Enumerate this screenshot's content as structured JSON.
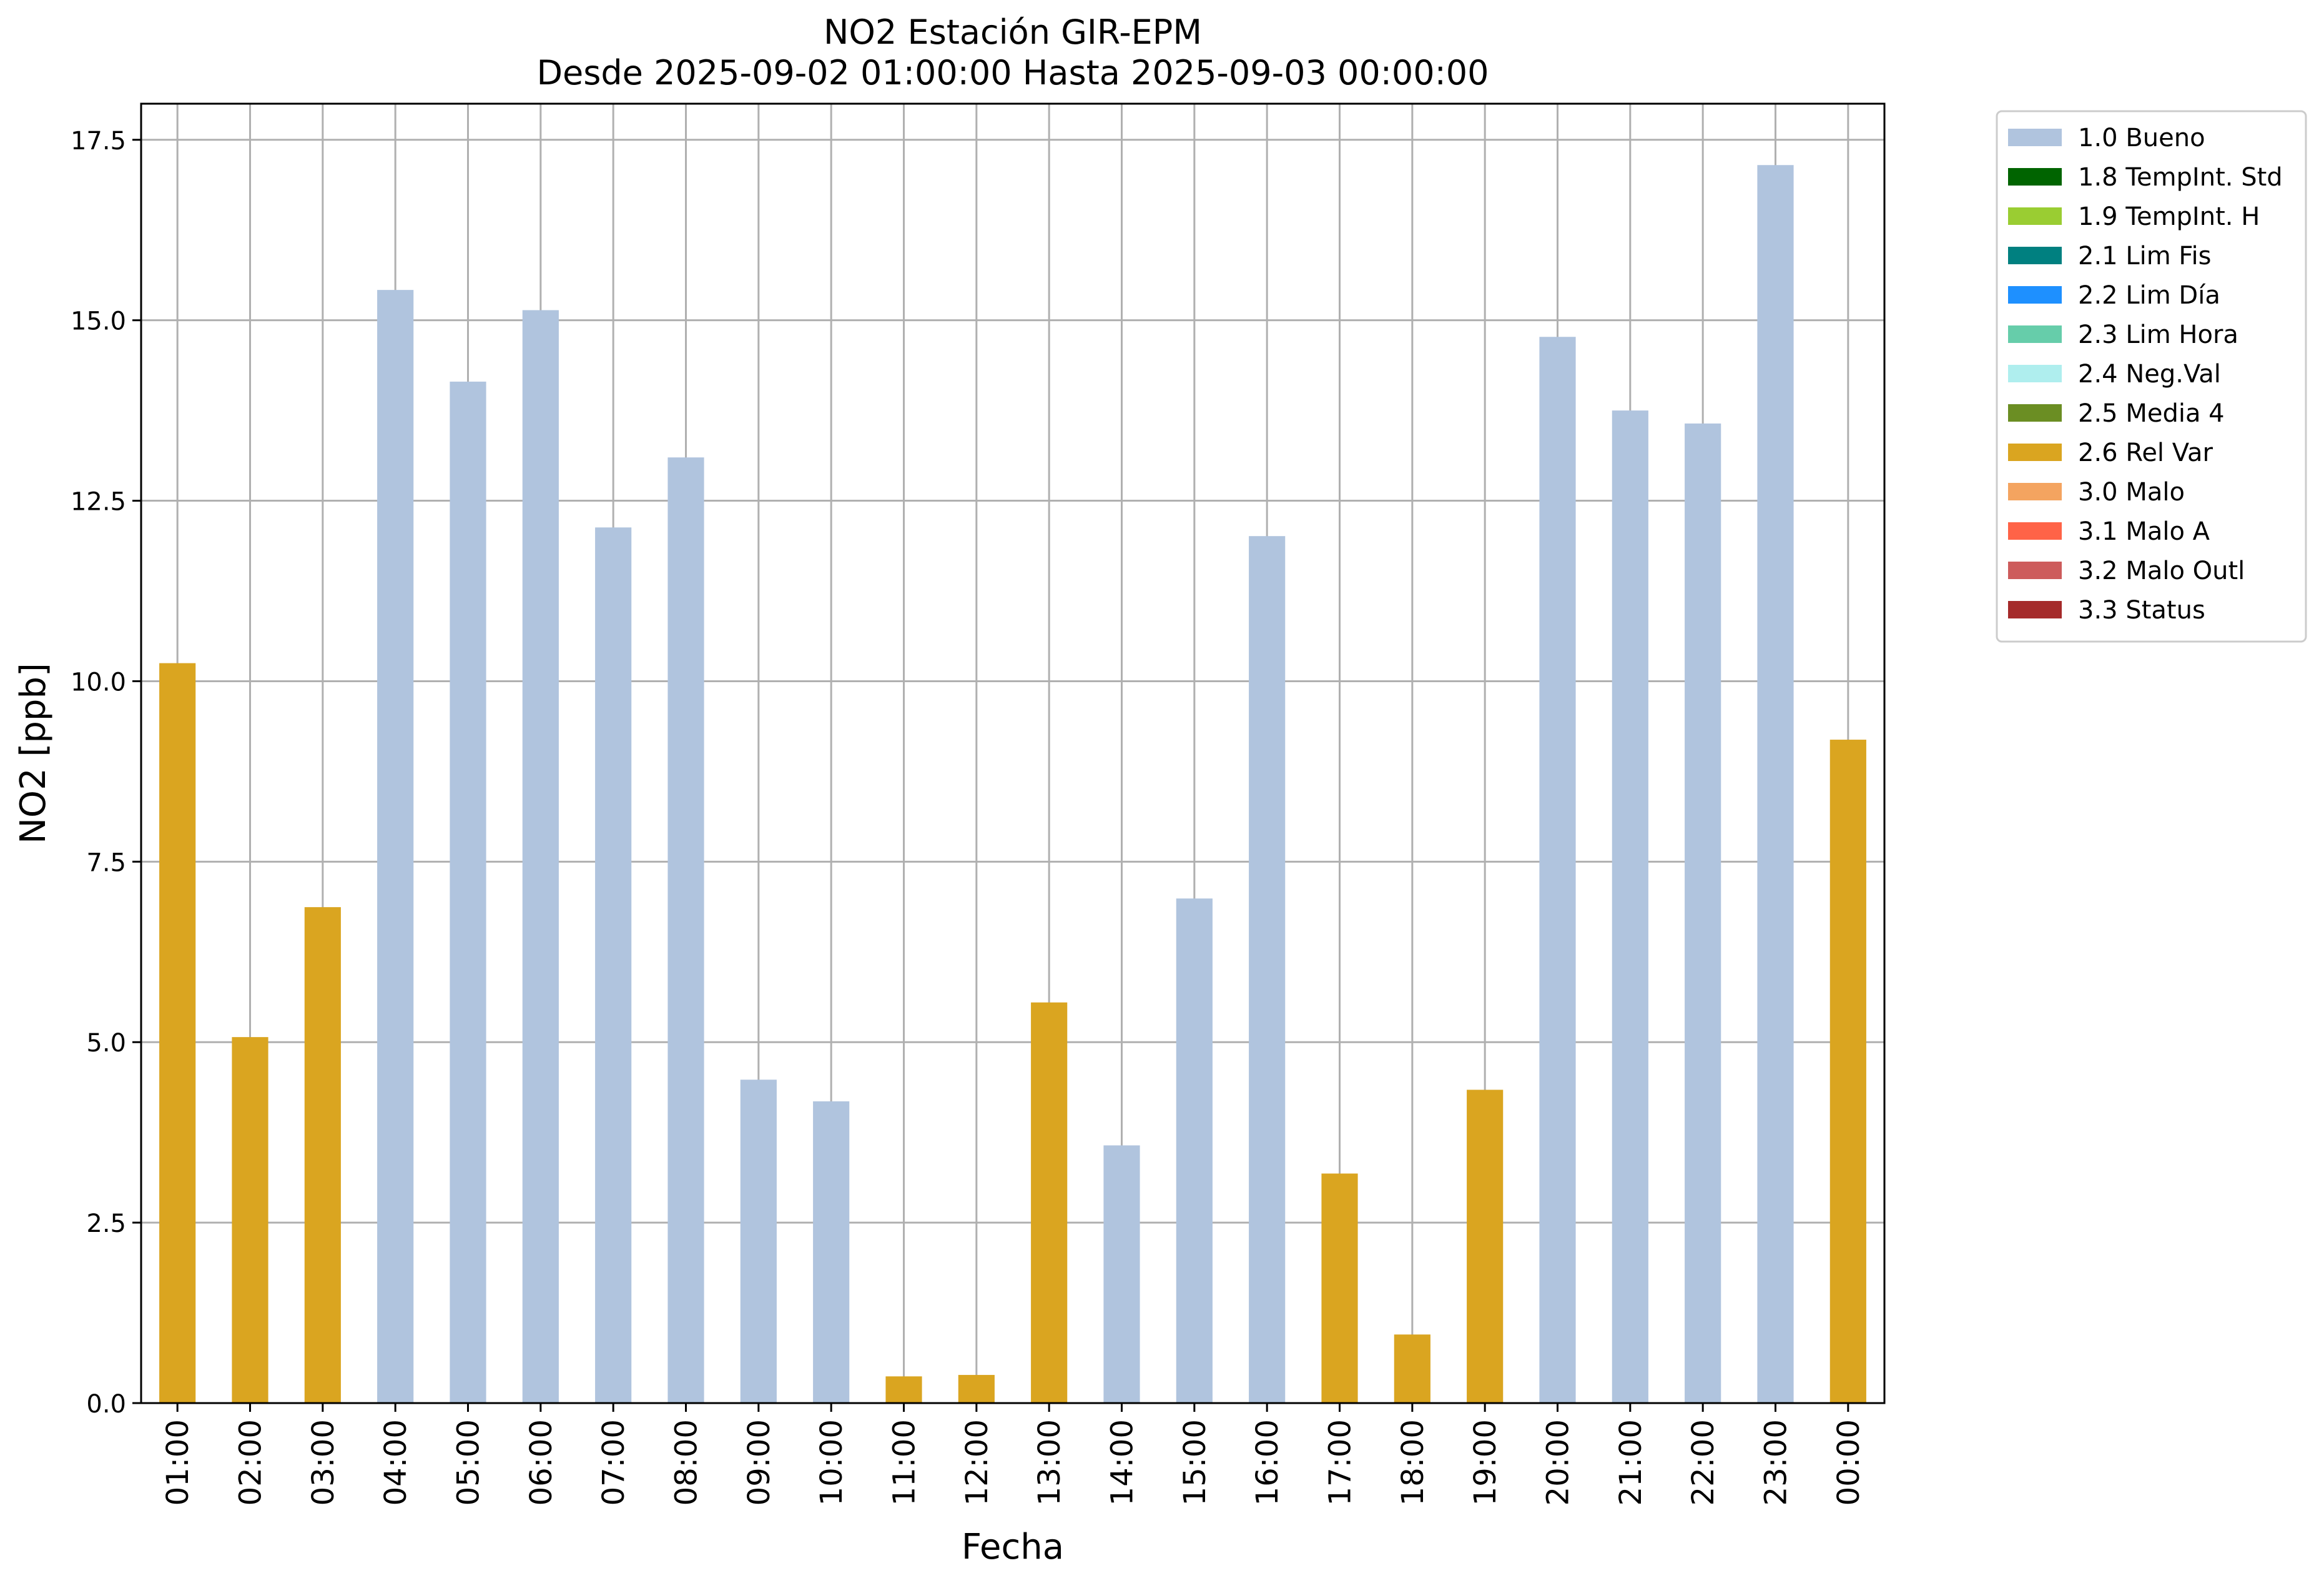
{
  "chart_data": {
    "type": "bar",
    "title": "NO2 Estación GIR-EPM",
    "subtitle": "Desde 2025-09-02 01:00:00 Hasta 2025-09-03 00:00:00",
    "xlabel": "Fecha",
    "ylabel": "NO2 [ppb]",
    "ylim": [
      0,
      18
    ],
    "yticks": [
      "0.0",
      "2.5",
      "5.0",
      "7.5",
      "10.0",
      "12.5",
      "15.0",
      "17.5"
    ],
    "grid": true,
    "legend_position": "outside-right",
    "categories": [
      "01:00",
      "02:00",
      "03:00",
      "04:00",
      "05:00",
      "06:00",
      "07:00",
      "08:00",
      "09:00",
      "10:00",
      "11:00",
      "12:00",
      "13:00",
      "14:00",
      "15:00",
      "16:00",
      "17:00",
      "18:00",
      "19:00",
      "20:00",
      "21:00",
      "22:00",
      "23:00",
      "00:00"
    ],
    "values": [
      10.25,
      5.07,
      6.87,
      15.42,
      14.15,
      15.14,
      12.13,
      13.1,
      4.48,
      4.18,
      0.37,
      0.39,
      5.55,
      3.57,
      6.99,
      12.01,
      3.18,
      0.95,
      4.34,
      14.77,
      13.75,
      13.57,
      17.15,
      9.19
    ],
    "flags": [
      "2.6 Rel Var",
      "2.6 Rel Var",
      "2.6 Rel Var",
      "1.0 Bueno",
      "1.0 Bueno",
      "1.0 Bueno",
      "1.0 Bueno",
      "1.0 Bueno",
      "1.0 Bueno",
      "1.0 Bueno",
      "2.6 Rel Var",
      "2.6 Rel Var",
      "2.6 Rel Var",
      "1.0 Bueno",
      "1.0 Bueno",
      "1.0 Bueno",
      "2.6 Rel Var",
      "2.6 Rel Var",
      "2.6 Rel Var",
      "1.0 Bueno",
      "1.0 Bueno",
      "1.0 Bueno",
      "1.0 Bueno",
      "2.6 Rel Var"
    ],
    "legend": [
      {
        "name": "1.0 Bueno",
        "color": "#b0c4de"
      },
      {
        "name": "1.8 TempInt. Std",
        "color": "#006400"
      },
      {
        "name": "1.9 TempInt. H",
        "color": "#9acd32"
      },
      {
        "name": "2.1 Lim Fis",
        "color": "#008080"
      },
      {
        "name": "2.2 Lim Día",
        "color": "#1e90ff"
      },
      {
        "name": "2.3 Lim Hora",
        "color": "#66cdaa"
      },
      {
        "name": "2.4 Neg.Val",
        "color": "#afeeee"
      },
      {
        "name": "2.5 Media 4",
        "color": "#6b8e23"
      },
      {
        "name": "2.6 Rel Var",
        "color": "#daa520"
      },
      {
        "name": "3.0 Malo",
        "color": "#f4a460"
      },
      {
        "name": "3.1 Malo A",
        "color": "#ff6347"
      },
      {
        "name": "3.2 Malo Outl",
        "color": "#cd5c5c"
      },
      {
        "name": "3.3 Status",
        "color": "#a52a2a"
      }
    ]
  }
}
